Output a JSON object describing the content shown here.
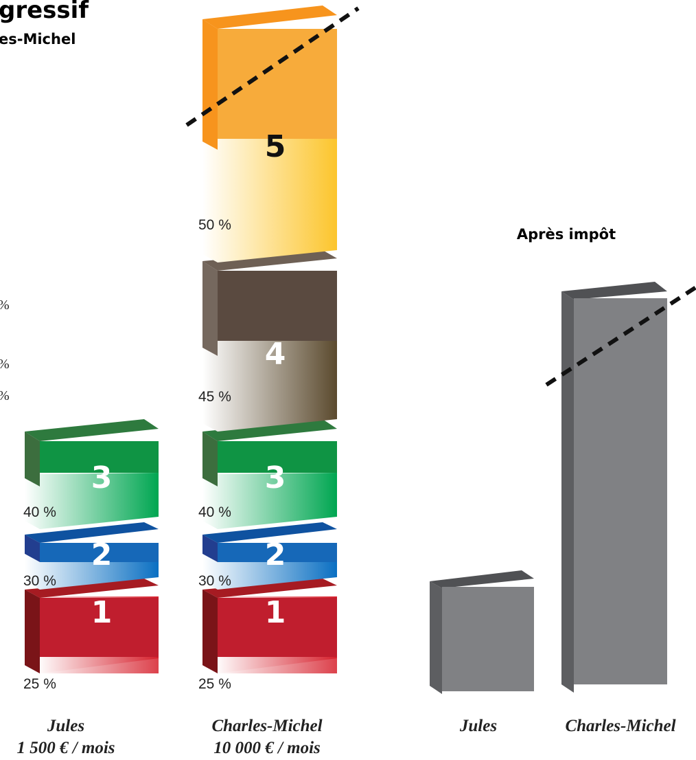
{
  "header": {
    "title_fragment": "gressif",
    "subtitle_fragment": "es-Michel",
    "after_tax_title": "Après impôt"
  },
  "left_edge_marks": [
    "%",
    "%",
    "%"
  ],
  "colors": {
    "bracket_1": "#c01e2e",
    "bracket_2": "#1668b8",
    "bracket_3": "#0f9444",
    "bracket_4": "#5a4a40",
    "bracket_5": "#f7a630",
    "after_tax": "#808184"
  },
  "chart_data": [
    {
      "type": "bar",
      "stacked": true,
      "categories": [
        "Jules",
        "Charles-Michel"
      ],
      "income_labels": [
        "1 500 € / mois",
        "10 000 € / mois"
      ],
      "brackets": [
        {
          "id": "1",
          "rate_label": "25 %",
          "rate": 25
        },
        {
          "id": "2",
          "rate_label": "30 %",
          "rate": 30
        },
        {
          "id": "3",
          "rate_label": "40 %",
          "rate": 40
        },
        {
          "id": "4",
          "rate_label": "45 %",
          "rate": 45
        },
        {
          "id": "5",
          "rate_label": "50 %",
          "rate": 50
        }
      ],
      "stacks": [
        {
          "category": "Jules",
          "brackets": [
            "1",
            "2",
            "3"
          ]
        },
        {
          "category": "Charles-Michel",
          "brackets": [
            "1",
            "2",
            "3",
            "4",
            "5"
          ],
          "truncated": true
        }
      ]
    },
    {
      "type": "bar",
      "title": "Après impôt",
      "categories": [
        "Jules",
        "Charles-Michel"
      ],
      "values": [
        1,
        5
      ],
      "truncated": [
        false,
        true
      ]
    }
  ]
}
